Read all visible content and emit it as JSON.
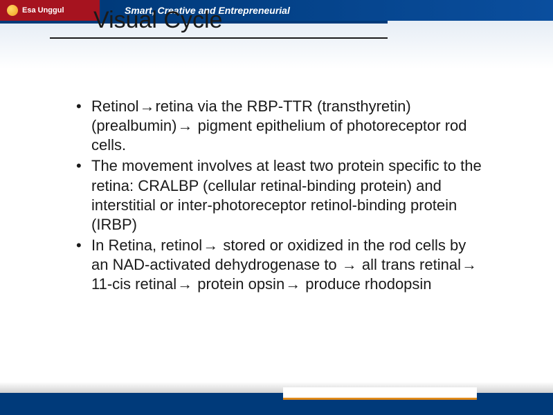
{
  "brand": {
    "name": "Esa Unggul",
    "tagline": "Smart, Creative and Entrepreneurial"
  },
  "slide": {
    "title": "Visual Cycle",
    "bullets": [
      "Retinol→retina via the RBP-TTR (transthyretin) (prealbumin)→ pigment epithelium of photoreceptor rod cells.",
      "The movement involves at least two protein specific to the retina: CRALBP (cellular retinal-binding protein) and interstitial or inter-photoreceptor retinol-binding protein (IRBP)",
      "In Retina, retinol→ stored or oxidized in the rod cells by an NAD-activated dehydrogenase to → all trans retinal→ 11-cis retinal→ protein opsin→ produce rhodopsin"
    ]
  },
  "style": {
    "title_fontsize": 34,
    "body_fontsize": 22,
    "text_color": "#1a1a1a",
    "header_red": "#a6131f",
    "header_blue": "#003a7a",
    "footer_blue": "#003a7a",
    "footer_accent": "#e08a1a",
    "background": "#ffffff",
    "arrow_glyph": "→"
  }
}
